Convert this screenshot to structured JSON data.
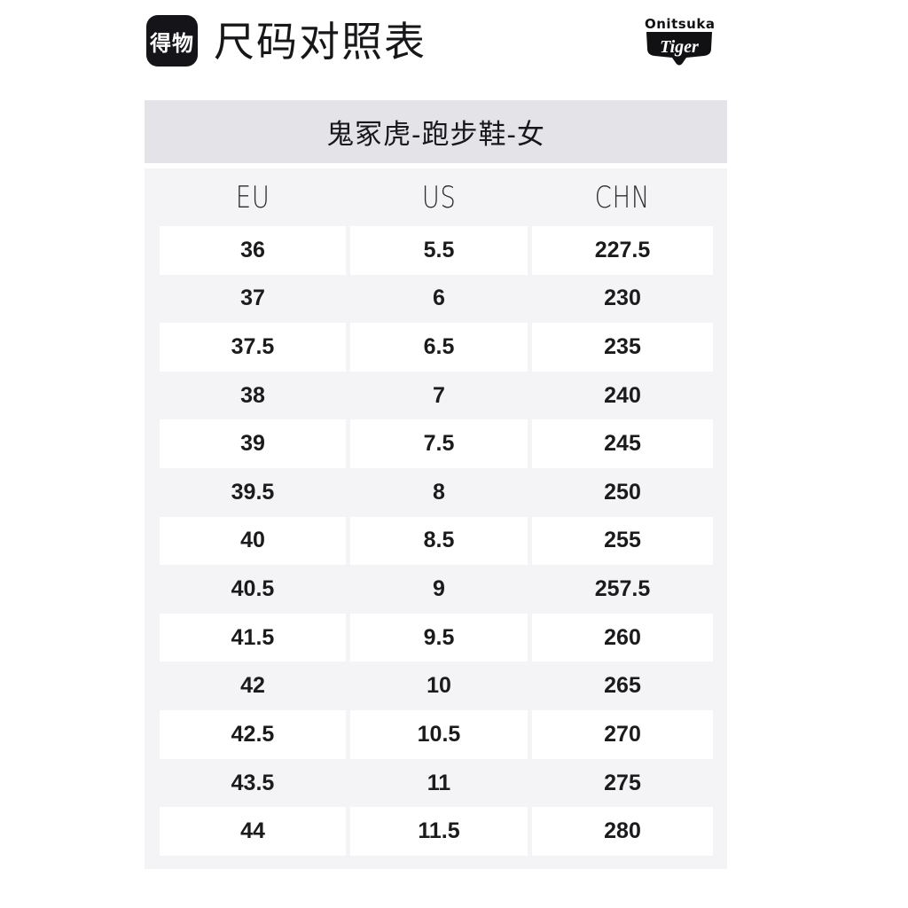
{
  "header": {
    "app_logo_text": "得物",
    "page_title": "尺码对照表",
    "brand_logo": {
      "line1": "Onitsuka",
      "line2": "Tiger"
    }
  },
  "banner": {
    "title": "鬼冢虎-跑步鞋-女"
  },
  "size_table": {
    "columns": [
      "EU",
      "US",
      "CHN"
    ],
    "rows": [
      [
        "36",
        "5.5",
        "227.5"
      ],
      [
        "37",
        "6",
        "230"
      ],
      [
        "37.5",
        "6.5",
        "235"
      ],
      [
        "38",
        "7",
        "240"
      ],
      [
        "39",
        "7.5",
        "245"
      ],
      [
        "39.5",
        "8",
        "250"
      ],
      [
        "40",
        "8.5",
        "255"
      ],
      [
        "40.5",
        "9",
        "257.5"
      ],
      [
        "41.5",
        "9.5",
        "260"
      ],
      [
        "42",
        "10",
        "265"
      ],
      [
        "42.5",
        "10.5",
        "270"
      ],
      [
        "43.5",
        "11",
        "275"
      ],
      [
        "44",
        "11.5",
        "280"
      ]
    ]
  },
  "colors": {
    "logo_bg": "#141419",
    "banner_bg": "#e3e3e8",
    "table_bg": "#f4f4f7",
    "row_alt_bg": "#ffffff",
    "text": "#17171a"
  }
}
